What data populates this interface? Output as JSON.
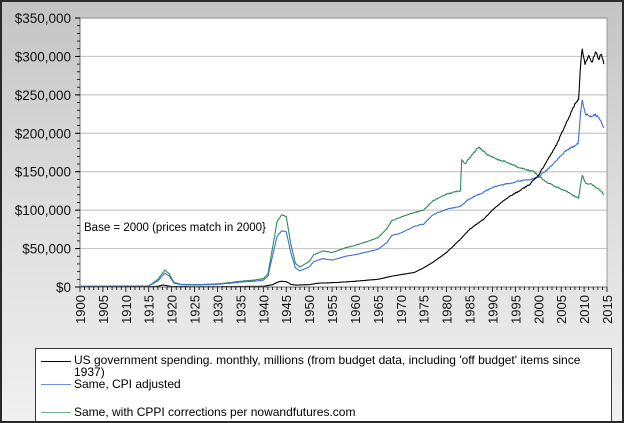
{
  "chart_data": {
    "type": "line",
    "title": "",
    "xlabel": "",
    "ylabel": "",
    "xlim": [
      1900,
      2015
    ],
    "ylim": [
      0,
      350000
    ],
    "grid": true,
    "legend_placement": "bottom",
    "x_ticks": [
      "1900",
      "1905",
      "1910",
      "1915",
      "1920",
      "1925",
      "1930",
      "1935",
      "1940",
      "1945",
      "1950",
      "1955",
      "1960",
      "1965",
      "1970",
      "1975",
      "1980",
      "1985",
      "1990",
      "1995",
      "2000",
      "2005",
      "2010",
      "2015"
    ],
    "y_ticks": [
      {
        "value": 0,
        "label": "$0"
      },
      {
        "value": 50000,
        "label": "$50,000"
      },
      {
        "value": 100000,
        "label": "$100,000"
      },
      {
        "value": 150000,
        "label": "$150,000"
      },
      {
        "value": 200000,
        "label": "$200,000"
      },
      {
        "value": 250000,
        "label": "$250,000"
      },
      {
        "value": 300000,
        "label": "$300,000"
      },
      {
        "value": 350000,
        "label": "$350,000"
      }
    ],
    "annotation": "Base = 2000 (prices match in 2000}",
    "series": [
      {
        "name": "US government spending. monthly, millions (from budget data, including 'off budget' items since 1937)",
        "color": "#000000",
        "points": [
          [
            1900,
            300
          ],
          [
            1915,
            400
          ],
          [
            1917,
            1000
          ],
          [
            1918,
            2500
          ],
          [
            1919,
            1800
          ],
          [
            1920,
            700
          ],
          [
            1925,
            300
          ],
          [
            1930,
            400
          ],
          [
            1935,
            700
          ],
          [
            1940,
            900
          ],
          [
            1942,
            3000
          ],
          [
            1943,
            6000
          ],
          [
            1944,
            7500
          ],
          [
            1945,
            7000
          ],
          [
            1946,
            3500
          ],
          [
            1947,
            2500
          ],
          [
            1950,
            3000
          ],
          [
            1952,
            5000
          ],
          [
            1955,
            5500
          ],
          [
            1960,
            7500
          ],
          [
            1965,
            10000
          ],
          [
            1968,
            14000
          ],
          [
            1970,
            16000
          ],
          [
            1973,
            19000
          ],
          [
            1975,
            25000
          ],
          [
            1977,
            32000
          ],
          [
            1980,
            45000
          ],
          [
            1983,
            62000
          ],
          [
            1985,
            75000
          ],
          [
            1988,
            88000
          ],
          [
            1990,
            100000
          ],
          [
            1993,
            115000
          ],
          [
            1995,
            122000
          ],
          [
            1998,
            133000
          ],
          [
            2000,
            145000
          ],
          [
            2002,
            165000
          ],
          [
            2004,
            185000
          ],
          [
            2006,
            212000
          ],
          [
            2008,
            238000
          ],
          [
            2008.8,
            245000
          ],
          [
            2009.3,
            295000
          ],
          [
            2009.6,
            311000
          ],
          [
            2010.2,
            290000
          ],
          [
            2011,
            300000
          ],
          [
            2011.7,
            292000
          ],
          [
            2012.5,
            305000
          ],
          [
            2013.2,
            297000
          ],
          [
            2013.8,
            303000
          ],
          [
            2014.3,
            290000
          ]
        ]
      },
      {
        "name": "Same, CPI adjusted",
        "color": "#3a6fd8",
        "points": [
          [
            1900,
            800
          ],
          [
            1915,
            1200
          ],
          [
            1917,
            8000
          ],
          [
            1918.5,
            18000
          ],
          [
            1919.5,
            14000
          ],
          [
            1920.5,
            5000
          ],
          [
            1922,
            3000
          ],
          [
            1925,
            2500
          ],
          [
            1930,
            3500
          ],
          [
            1933,
            5000
          ],
          [
            1935,
            6500
          ],
          [
            1938,
            7500
          ],
          [
            1940,
            9000
          ],
          [
            1941,
            14000
          ],
          [
            1942,
            40000
          ],
          [
            1943,
            66000
          ],
          [
            1944,
            73000
          ],
          [
            1945,
            72000
          ],
          [
            1946,
            45000
          ],
          [
            1947,
            25000
          ],
          [
            1948,
            21000
          ],
          [
            1950,
            26000
          ],
          [
            1951,
            33000
          ],
          [
            1953,
            37000
          ],
          [
            1955,
            35000
          ],
          [
            1958,
            40000
          ],
          [
            1960,
            42000
          ],
          [
            1963,
            46000
          ],
          [
            1965,
            49000
          ],
          [
            1967,
            58000
          ],
          [
            1968,
            67000
          ],
          [
            1970,
            70000
          ],
          [
            1973,
            79000
          ],
          [
            1975,
            82000
          ],
          [
            1977,
            94000
          ],
          [
            1980,
            101000
          ],
          [
            1983,
            105000
          ],
          [
            1985,
            115000
          ],
          [
            1988,
            123000
          ],
          [
            1990,
            130000
          ],
          [
            1993,
            134000
          ],
          [
            1996,
            138000
          ],
          [
            1999,
            141000
          ],
          [
            2000,
            143000
          ],
          [
            2002,
            153000
          ],
          [
            2004,
            165000
          ],
          [
            2006,
            177000
          ],
          [
            2008,
            184000
          ],
          [
            2008.7,
            187000
          ],
          [
            2009.2,
            225000
          ],
          [
            2009.6,
            242000
          ],
          [
            2010.3,
            225000
          ],
          [
            2011.5,
            222000
          ],
          [
            2012.5,
            224000
          ],
          [
            2013.5,
            218000
          ],
          [
            2014.3,
            207000
          ]
        ]
      },
      {
        "name": "Same, with CPPI corrections per nowandfutures.com",
        "color": "#2e8b57",
        "points": [
          [
            1900,
            900
          ],
          [
            1915,
            1400
          ],
          [
            1917,
            10000
          ],
          [
            1918.5,
            22000
          ],
          [
            1919.5,
            17000
          ],
          [
            1920.5,
            6000
          ],
          [
            1922,
            3500
          ],
          [
            1925,
            3000
          ],
          [
            1930,
            4000
          ],
          [
            1933,
            6000
          ],
          [
            1935,
            7500
          ],
          [
            1938,
            9000
          ],
          [
            1940,
            11000
          ],
          [
            1941,
            17000
          ],
          [
            1942,
            50000
          ],
          [
            1943,
            85000
          ],
          [
            1944,
            94000
          ],
          [
            1945,
            92000
          ],
          [
            1946,
            56000
          ],
          [
            1947,
            31000
          ],
          [
            1948,
            26000
          ],
          [
            1950,
            33000
          ],
          [
            1951,
            42000
          ],
          [
            1953,
            47000
          ],
          [
            1955,
            45000
          ],
          [
            1958,
            51000
          ],
          [
            1960,
            54000
          ],
          [
            1963,
            60000
          ],
          [
            1965,
            64000
          ],
          [
            1967,
            76000
          ],
          [
            1968,
            86000
          ],
          [
            1970,
            91000
          ],
          [
            1973,
            97000
          ],
          [
            1975,
            100000
          ],
          [
            1977,
            112000
          ],
          [
            1980,
            121000
          ],
          [
            1982,
            124000
          ],
          [
            1983,
            125000
          ],
          [
            1983.3,
            166000
          ],
          [
            1984,
            160000
          ],
          [
            1985,
            168000
          ],
          [
            1987,
            182000
          ],
          [
            1989,
            172000
          ],
          [
            1991,
            166000
          ],
          [
            1993,
            163000
          ],
          [
            1996,
            155000
          ],
          [
            1999,
            150000
          ],
          [
            2000,
            145000
          ],
          [
            2002,
            136000
          ],
          [
            2004,
            130000
          ],
          [
            2006,
            125000
          ],
          [
            2008,
            118000
          ],
          [
            2008.8,
            116000
          ],
          [
            2009.3,
            135000
          ],
          [
            2009.6,
            146000
          ],
          [
            2010.3,
            135000
          ],
          [
            2011.5,
            134000
          ],
          [
            2012.5,
            130000
          ],
          [
            2013.5,
            126000
          ],
          [
            2014.3,
            120000
          ]
        ]
      }
    ]
  }
}
